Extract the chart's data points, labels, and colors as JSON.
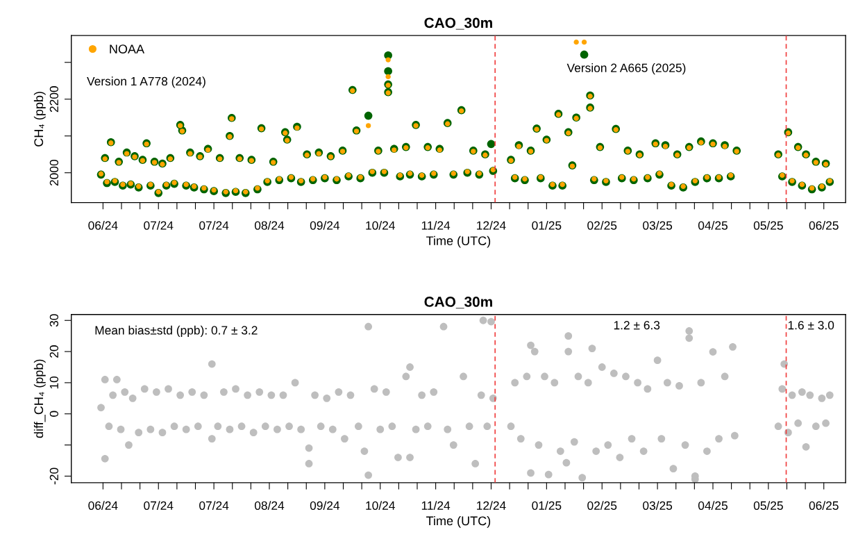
{
  "chart_data": [
    {
      "type": "scatter",
      "title": "CAO_30m",
      "xlabel": "Time (UTC)",
      "ylabel": "CH₄ (ppb)",
      "marker": "circle",
      "grid": false,
      "legend": "top left",
      "xlim": [
        "2024-05-16",
        "2025-06-11"
      ],
      "xticks": [
        {
          "value": "2024-06-01",
          "label": "06/24"
        },
        {
          "value": "2024-06-10T08:00",
          "label": null
        },
        {
          "value": "2024-06-19T16:00",
          "label": null
        },
        {
          "value": "2024-06-29",
          "label": "07/24"
        },
        {
          "value": "2024-07-08T08:00",
          "label": null
        },
        {
          "value": "2024-07-17T16:00",
          "label": null
        },
        {
          "value": "2024-07-27",
          "label": "07/24"
        },
        {
          "value": "2024-08-05T08:00",
          "label": null
        },
        {
          "value": "2024-08-14T16:00",
          "label": null
        },
        {
          "value": "2024-08-24",
          "label": "08/24"
        },
        {
          "value": "2024-09-02T08:00",
          "label": null
        },
        {
          "value": "2024-09-11T16:00",
          "label": null
        },
        {
          "value": "2024-09-21",
          "label": "09/24"
        },
        {
          "value": "2024-09-30T08:00",
          "label": null
        },
        {
          "value": "2024-10-09T16:00",
          "label": null
        },
        {
          "value": "2024-10-19",
          "label": "10/24"
        },
        {
          "value": "2024-10-28T08:00",
          "label": null
        },
        {
          "value": "2024-11-06T16:00",
          "label": null
        },
        {
          "value": "2024-11-16",
          "label": "11/24"
        },
        {
          "value": "2024-11-25T08:00",
          "label": null
        },
        {
          "value": "2024-12-04T16:00",
          "label": null
        },
        {
          "value": "2024-12-14",
          "label": "12/24"
        },
        {
          "value": "2024-12-23T08:00",
          "label": null
        },
        {
          "value": "2025-01-01T16:00",
          "label": null
        },
        {
          "value": "2025-01-11",
          "label": "01/25"
        },
        {
          "value": "2025-01-20T08:00",
          "label": null
        },
        {
          "value": "2025-01-29T16:00",
          "label": null
        },
        {
          "value": "2025-02-08",
          "label": "02/25"
        },
        {
          "value": "2025-02-17T08:00",
          "label": null
        },
        {
          "value": "2025-02-26T16:00",
          "label": null
        },
        {
          "value": "2025-03-08",
          "label": "03/25"
        },
        {
          "value": "2025-03-17T08:00",
          "label": null
        },
        {
          "value": "2025-03-26T16:00",
          "label": null
        },
        {
          "value": "2025-04-05",
          "label": "04/25"
        },
        {
          "value": "2025-04-14T08:00",
          "label": null
        },
        {
          "value": "2025-04-23T16:00",
          "label": null
        },
        {
          "value": "2025-05-03",
          "label": "05/25"
        },
        {
          "value": "2025-05-12T08:00",
          "label": null
        },
        {
          "value": "2025-05-21T16:00",
          "label": null
        },
        {
          "value": "2025-05-31",
          "label": "06/25"
        }
      ],
      "ylim": [
        1919,
        2373
      ],
      "yticks": [
        2000,
        {
          "value": 2100,
          "label": null
        },
        2200,
        {
          "value": 2300,
          "label": null
        }
      ],
      "ref_lines": [
        {
          "axis": "x",
          "value": "2024-12-16",
          "color": "#f03c3c",
          "line_style": "dashed"
        },
        {
          "axis": "x",
          "value": "2025-05-12",
          "color": "#f03c3c",
          "line_style": "dashed"
        }
      ],
      "annotations": [
        "Version 1 A778 (2024)",
        "Version 2 A665 (2025)"
      ],
      "series": [
        {
          "color": "#006400",
          "x": [
            "2024-05-31",
            "2024-06-02",
            "2024-06-03",
            "2024-06-05",
            "2024-06-07",
            "2024-06-09",
            "2024-06-11",
            "2024-06-13",
            "2024-06-15",
            "2024-06-17",
            "2024-06-19",
            "2024-06-21",
            "2024-06-23",
            "2024-06-25",
            "2024-06-27",
            "2024-06-29",
            "2024-07-01",
            "2024-07-03",
            "2024-07-05",
            "2024-07-07",
            "2024-07-10",
            "2024-07-11",
            "2024-07-13",
            "2024-07-15",
            "2024-07-17",
            "2024-07-20",
            "2024-07-22",
            "2024-07-24",
            "2024-07-27",
            "2024-07-30",
            "2024-08-02",
            "2024-08-04",
            "2024-08-05",
            "2024-08-07",
            "2024-08-09",
            "2024-08-12",
            "2024-08-15",
            "2024-08-18",
            "2024-08-20",
            "2024-08-23",
            "2024-08-26",
            "2024-08-29",
            "2024-09-01",
            "2024-09-02",
            "2024-09-04",
            "2024-09-07",
            "2024-09-09",
            "2024-09-12",
            "2024-09-15",
            "2024-09-18",
            "2024-09-21",
            "2024-09-24",
            "2024-09-27",
            "2024-09-30",
            "2024-10-03",
            "2024-10-05",
            "2024-10-07",
            "2024-10-09",
            "2024-10-13",
            "2024-10-15",
            "2024-10-18",
            "2024-10-21",
            "2024-10-23",
            "2024-10-23",
            "2024-10-23",
            "2024-10-23",
            "2024-10-26",
            "2024-10-29",
            "2024-11-01",
            "2024-11-03",
            "2024-11-06",
            "2024-11-09",
            "2024-11-12",
            "2024-11-15",
            "2024-11-18",
            "2024-11-22",
            "2024-11-25",
            "2024-11-29",
            "2024-12-02",
            "2024-12-05",
            "2024-12-08",
            "2024-12-11",
            "2024-12-14",
            "2024-12-15",
            "2024-12-24",
            "2024-12-26",
            "2024-12-28",
            "2024-12-31",
            "2025-01-03",
            "2025-01-06",
            "2025-01-08",
            "2025-01-11",
            "2025-01-14",
            "2025-01-17",
            "2025-01-19",
            "2025-01-22",
            "2025-01-24",
            "2025-01-26",
            "2025-01-30",
            "2025-02-02",
            "2025-02-02",
            "2025-02-04",
            "2025-02-07",
            "2025-02-10",
            "2025-02-15",
            "2025-02-18",
            "2025-02-21",
            "2025-02-24",
            "2025-02-27",
            "2025-03-03",
            "2025-03-07",
            "2025-03-09",
            "2025-03-12",
            "2025-03-15",
            "2025-03-18",
            "2025-03-21",
            "2025-03-24",
            "2025-03-27",
            "2025-03-30",
            "2025-04-02",
            "2025-04-05",
            "2025-04-08",
            "2025-04-11",
            "2025-04-14",
            "2025-04-17",
            "2025-05-08",
            "2025-05-10",
            "2025-05-13",
            "2025-05-15",
            "2025-05-18",
            "2025-05-20",
            "2025-05-22",
            "2025-05-25",
            "2025-05-27",
            "2025-05-30",
            "2025-06-01",
            "2025-06-03"
          ],
          "values": [
            1995,
            2040,
            1972,
            2083,
            1975,
            2030,
            1965,
            2055,
            1968,
            2045,
            1960,
            2035,
            2080,
            1965,
            2030,
            1945,
            2025,
            1965,
            2040,
            1970,
            2130,
            2115,
            1965,
            2055,
            1960,
            2045,
            1955,
            2065,
            1950,
            2040,
            1945,
            2100,
            2149,
            1948,
            2040,
            1945,
            2035,
            1955,
            2121,
            1975,
            2030,
            1980,
            2110,
            2090,
            1985,
            2125,
            1975,
            2050,
            1980,
            2055,
            1985,
            2045,
            1980,
            2060,
            1990,
            2225,
            2115,
            1985,
            2155,
            2000,
            2060,
            2000,
            2319,
            2276,
            2240,
            2219,
            2065,
            1990,
            2070,
            1995,
            2130,
            1990,
            2070,
            1995,
            2065,
            2135,
            1995,
            2170,
            2000,
            2060,
            1995,
            2050,
            2078,
            2005,
            2035,
            1985,
            2075,
            1980,
            2060,
            2120,
            1985,
            2090,
            1965,
            2160,
            1965,
            2110,
            2020,
            2150,
            2321,
            2210,
            2177,
            1980,
            2070,
            1975,
            2119,
            1985,
            2060,
            1980,
            2050,
            1985,
            2080,
            1995,
            2075,
            1965,
            2050,
            1960,
            2070,
            1975,
            2085,
            1985,
            2080,
            1985,
            2075,
            1990,
            2060,
            2050,
            1990,
            2110,
            1975,
            2070,
            1965,
            2050,
            1955,
            2030,
            1960,
            2025,
            1975
          ]
        },
        {
          "name": "NOAA",
          "color": "#ffa500",
          "x": [
            "2024-05-31",
            "2024-06-02",
            "2024-06-03",
            "2024-06-05",
            "2024-06-07",
            "2024-06-09",
            "2024-06-11",
            "2024-06-13",
            "2024-06-15",
            "2024-06-17",
            "2024-06-19",
            "2024-06-21",
            "2024-06-23",
            "2024-06-25",
            "2024-06-27",
            "2024-06-29",
            "2024-07-01",
            "2024-07-03",
            "2024-07-05",
            "2024-07-07",
            "2024-07-10",
            "2024-07-11",
            "2024-07-13",
            "2024-07-15",
            "2024-07-17",
            "2024-07-20",
            "2024-07-22",
            "2024-07-24",
            "2024-07-27",
            "2024-07-30",
            "2024-08-02",
            "2024-08-04",
            "2024-08-05",
            "2024-08-07",
            "2024-08-09",
            "2024-08-12",
            "2024-08-15",
            "2024-08-18",
            "2024-08-20",
            "2024-08-23",
            "2024-08-26",
            "2024-08-29",
            "2024-09-01",
            "2024-09-02",
            "2024-09-04",
            "2024-09-07",
            "2024-09-09",
            "2024-09-12",
            "2024-09-15",
            "2024-09-18",
            "2024-09-21",
            "2024-09-24",
            "2024-09-27",
            "2024-09-30",
            "2024-10-03",
            "2024-10-05",
            "2024-10-07",
            "2024-10-09",
            "2024-10-13",
            "2024-10-15",
            "2024-10-18",
            "2024-10-21",
            "2024-10-23",
            "2024-10-23",
            "2024-10-23",
            "2024-10-23",
            "2024-10-26",
            "2024-10-29",
            "2024-11-01",
            "2024-11-03",
            "2024-11-06",
            "2024-11-09",
            "2024-11-12",
            "2024-11-15",
            "2024-11-18",
            "2024-11-22",
            "2024-11-25",
            "2024-11-29",
            "2024-12-02",
            "2024-12-05",
            "2024-12-08",
            "2024-12-11",
            "2024-12-15",
            "2024-12-24",
            "2024-12-26",
            "2024-12-28",
            "2024-12-31",
            "2025-01-03",
            "2025-01-06",
            "2025-01-08",
            "2025-01-11",
            "2025-01-14",
            "2025-01-17",
            "2025-01-19",
            "2025-01-22",
            "2025-01-24",
            "2025-01-26",
            "2025-01-26",
            "2025-01-30",
            "2025-02-02",
            "2025-02-02",
            "2025-02-04",
            "2025-02-07",
            "2025-02-10",
            "2025-02-15",
            "2025-02-18",
            "2025-02-21",
            "2025-02-24",
            "2025-02-27",
            "2025-03-03",
            "2025-03-07",
            "2025-03-09",
            "2025-03-12",
            "2025-03-15",
            "2025-03-18",
            "2025-03-21",
            "2025-03-24",
            "2025-03-27",
            "2025-03-30",
            "2025-04-02",
            "2025-04-05",
            "2025-04-08",
            "2025-04-11",
            "2025-04-14",
            "2025-04-17",
            "2025-05-08",
            "2025-05-10",
            "2025-05-13",
            "2025-05-15",
            "2025-05-18",
            "2025-05-20",
            "2025-05-22",
            "2025-05-25",
            "2025-05-27",
            "2025-05-30",
            "2025-06-01",
            "2025-06-03"
          ],
          "values": [
            1997,
            2038,
            1975,
            2081,
            1978,
            2028,
            1968,
            2052,
            1971,
            2043,
            1963,
            2033,
            2078,
            1968,
            2028,
            1948,
            2023,
            1968,
            2038,
            1973,
            2128,
            2113,
            1968,
            2052,
            1963,
            2043,
            1958,
            2062,
            1953,
            2038,
            1948,
            2098,
            2147,
            1951,
            2038,
            1948,
            2033,
            1958,
            2119,
            1978,
            2028,
            1983,
            2108,
            2088,
            1988,
            2122,
            1978,
            2048,
            1983,
            2052,
            1988,
            2043,
            1983,
            2058,
            1993,
            2223,
            2113,
            1988,
            2128,
            2003,
            2058,
            2003,
            2307,
            2261,
            2238,
            2217,
            2062,
            1993,
            2068,
            1998,
            2128,
            1993,
            2068,
            1998,
            2062,
            2133,
            1998,
            2168,
            2003,
            2058,
            1998,
            2048,
            2008,
            2033,
            1988,
            2072,
            1983,
            2058,
            2118,
            1988,
            2088,
            1968,
            2158,
            1968,
            2108,
            2018,
            2148,
            2355,
            2355,
            2208,
            2175,
            1983,
            2068,
            1978,
            2117,
            1988,
            2058,
            1983,
            2048,
            1988,
            2078,
            1998,
            2072,
            1968,
            2048,
            1963,
            2068,
            1978,
            2082,
            1988,
            2078,
            1988,
            2072,
            1993,
            2058,
            2048,
            1993,
            2108,
            1978,
            2068,
            1968,
            2048,
            1958,
            2028,
            1963,
            2023,
            1978
          ]
        }
      ]
    },
    {
      "type": "scatter",
      "title": "CAO_30m",
      "xlabel": "Time (UTC)",
      "ylabel": "diff_CH₄ (ppb)",
      "marker": "circle",
      "grid": false,
      "xlim": [
        "2024-05-16",
        "2025-06-11"
      ],
      "xticks": [
        {
          "value": "2024-06-01",
          "label": "06/24"
        },
        {
          "value": "2024-06-10T08:00",
          "label": null
        },
        {
          "value": "2024-06-19T16:00",
          "label": null
        },
        {
          "value": "2024-06-29",
          "label": "07/24"
        },
        {
          "value": "2024-07-08T08:00",
          "label": null
        },
        {
          "value": "2024-07-17T16:00",
          "label": null
        },
        {
          "value": "2024-07-27",
          "label": "07/24"
        },
        {
          "value": "2024-08-05T08:00",
          "label": null
        },
        {
          "value": "2024-08-14T16:00",
          "label": null
        },
        {
          "value": "2024-08-24",
          "label": "08/24"
        },
        {
          "value": "2024-09-02T08:00",
          "label": null
        },
        {
          "value": "2024-09-11T16:00",
          "label": null
        },
        {
          "value": "2024-09-21",
          "label": "09/24"
        },
        {
          "value": "2024-09-30T08:00",
          "label": null
        },
        {
          "value": "2024-10-09T16:00",
          "label": null
        },
        {
          "value": "2024-10-19",
          "label": "10/24"
        },
        {
          "value": "2024-10-28T08:00",
          "label": null
        },
        {
          "value": "2024-11-06T16:00",
          "label": null
        },
        {
          "value": "2024-11-16",
          "label": "11/24"
        },
        {
          "value": "2024-11-25T08:00",
          "label": null
        },
        {
          "value": "2024-12-04T16:00",
          "label": null
        },
        {
          "value": "2024-12-14",
          "label": "12/24"
        },
        {
          "value": "2024-12-23T08:00",
          "label": null
        },
        {
          "value": "2025-01-01T16:00",
          "label": null
        },
        {
          "value": "2025-01-11",
          "label": "01/25"
        },
        {
          "value": "2025-01-20T08:00",
          "label": null
        },
        {
          "value": "2025-01-29T16:00",
          "label": null
        },
        {
          "value": "2025-02-08",
          "label": "02/25"
        },
        {
          "value": "2025-02-17T08:00",
          "label": null
        },
        {
          "value": "2025-02-26T16:00",
          "label": null
        },
        {
          "value": "2025-03-08",
          "label": "03/25"
        },
        {
          "value": "2025-03-17T08:00",
          "label": null
        },
        {
          "value": "2025-03-26T16:00",
          "label": null
        },
        {
          "value": "2025-04-05",
          "label": "04/25"
        },
        {
          "value": "2025-04-14T08:00",
          "label": null
        },
        {
          "value": "2025-04-23T16:00",
          "label": null
        },
        {
          "value": "2025-05-03",
          "label": "05/25"
        },
        {
          "value": "2025-05-12T08:00",
          "label": null
        },
        {
          "value": "2025-05-21T16:00",
          "label": null
        },
        {
          "value": "2025-05-31",
          "label": "06/25"
        }
      ],
      "ylim": [
        -22.1,
        31.9
      ],
      "yticks": [
        -20,
        {
          "value": -10,
          "label": null
        },
        0,
        10,
        20,
        30
      ],
      "ref_lines": [
        {
          "axis": "x",
          "value": "2024-12-16",
          "color": "#f03c3c",
          "line_style": "dashed"
        },
        {
          "axis": "x",
          "value": "2025-05-12",
          "color": "#f03c3c",
          "line_style": "dashed"
        }
      ],
      "annotations": [
        "Mean bias±std (ppb): 0.7 ± 3.2",
        "1.2 ± 6.3",
        "1.6 ± 3.0"
      ],
      "series": [
        {
          "color": "#bebebe",
          "x": [
            "2024-05-31",
            "2024-06-02",
            "2024-06-02",
            "2024-06-04",
            "2024-06-06",
            "2024-06-08",
            "2024-06-10",
            "2024-06-12",
            "2024-06-14",
            "2024-06-16",
            "2024-06-19",
            "2024-06-22",
            "2024-06-25",
            "2024-06-28",
            "2024-07-01",
            "2024-07-04",
            "2024-07-07",
            "2024-07-10",
            "2024-07-13",
            "2024-07-16",
            "2024-07-19",
            "2024-07-22",
            "2024-07-26",
            "2024-07-26",
            "2024-07-29",
            "2024-08-01",
            "2024-08-04",
            "2024-08-07",
            "2024-08-10",
            "2024-08-13",
            "2024-08-16",
            "2024-08-19",
            "2024-08-22",
            "2024-08-25",
            "2024-08-28",
            "2024-08-31",
            "2024-09-03",
            "2024-09-06",
            "2024-09-09",
            "2024-09-13",
            "2024-09-13",
            "2024-09-16",
            "2024-09-19",
            "2024-09-22",
            "2024-09-25",
            "2024-09-28",
            "2024-10-01",
            "2024-10-04",
            "2024-10-08",
            "2024-10-11",
            "2024-10-13",
            "2024-10-13",
            "2024-10-16",
            "2024-10-19",
            "2024-10-22",
            "2024-10-25",
            "2024-10-28",
            "2024-11-01",
            "2024-11-03",
            "2024-11-03",
            "2024-11-06",
            "2024-11-09",
            "2024-11-12",
            "2024-11-15",
            "2024-11-20",
            "2024-11-22",
            "2024-11-25",
            "2024-11-30",
            "2024-12-03",
            "2024-12-06",
            "2024-12-09",
            "2024-12-10",
            "2024-12-12",
            "2024-12-14",
            "2024-12-15",
            "2024-12-24",
            "2024-12-26",
            "2024-12-29",
            "2025-01-01",
            "2025-01-03",
            "2025-01-03",
            "2025-01-05",
            "2025-01-07",
            "2025-01-10",
            "2025-01-12",
            "2025-01-15",
            "2025-01-18",
            "2025-01-21",
            "2025-01-22",
            "2025-01-22",
            "2025-01-25",
            "2025-01-27",
            "2025-01-29",
            "2025-02-01",
            "2025-02-03",
            "2025-02-05",
            "2025-02-08",
            "2025-02-11",
            "2025-02-14",
            "2025-02-17",
            "2025-02-20",
            "2025-02-23",
            "2025-02-26",
            "2025-03-01",
            "2025-03-03",
            "2025-03-08",
            "2025-03-10",
            "2025-03-13",
            "2025-03-16",
            "2025-03-19",
            "2025-03-22",
            "2025-03-24",
            "2025-03-24",
            "2025-03-27",
            "2025-03-27",
            "2025-03-30",
            "2025-04-02",
            "2025-04-05",
            "2025-04-08",
            "2025-04-11",
            "2025-04-15",
            "2025-04-16",
            "2025-05-08",
            "2025-05-10",
            "2025-05-11",
            "2025-05-13",
            "2025-05-15",
            "2025-05-18",
            "2025-05-20",
            "2025-05-22",
            "2025-05-24",
            "2025-05-27",
            "2025-05-30",
            "2025-06-01",
            "2025-06-03"
          ],
          "values": [
            2,
            11,
            -14.4,
            -4,
            6,
            11,
            -5,
            7,
            -10,
            5,
            -6,
            8,
            -5,
            7,
            -6,
            8,
            -4,
            6,
            -5,
            7,
            -4,
            6,
            16,
            -8,
            -4,
            7,
            -5,
            8,
            -4,
            6,
            -6,
            7,
            -4,
            6,
            -5,
            6,
            -4,
            10,
            -5,
            -11,
            -16,
            6,
            -4,
            5,
            -5,
            7,
            -8,
            6,
            -4,
            -12,
            28,
            -19.7,
            8,
            -5,
            7,
            -4,
            -14,
            12,
            15,
            -14,
            -5,
            6,
            -4,
            7,
            28,
            -5,
            -10,
            12,
            -4,
            -16,
            6,
            30,
            -4,
            29.6,
            5,
            -4,
            10,
            -8,
            12,
            22,
            -19,
            20,
            -10,
            12,
            -19.5,
            10,
            -12,
            -15.7,
            25,
            20,
            -9,
            12,
            -20.5,
            10,
            21,
            -12,
            15,
            -10,
            13,
            -14,
            12,
            -8,
            10,
            -12,
            8,
            17.2,
            -8,
            10,
            -17.6,
            9,
            -10,
            26.6,
            24.3,
            -20,
            -21,
            10,
            -12,
            19.9,
            -8,
            12,
            21.5,
            -7,
            -4,
            8,
            16,
            -6,
            6,
            -3,
            7,
            -10.6,
            6,
            -4,
            5,
            -3,
            6
          ]
        }
      ]
    }
  ]
}
